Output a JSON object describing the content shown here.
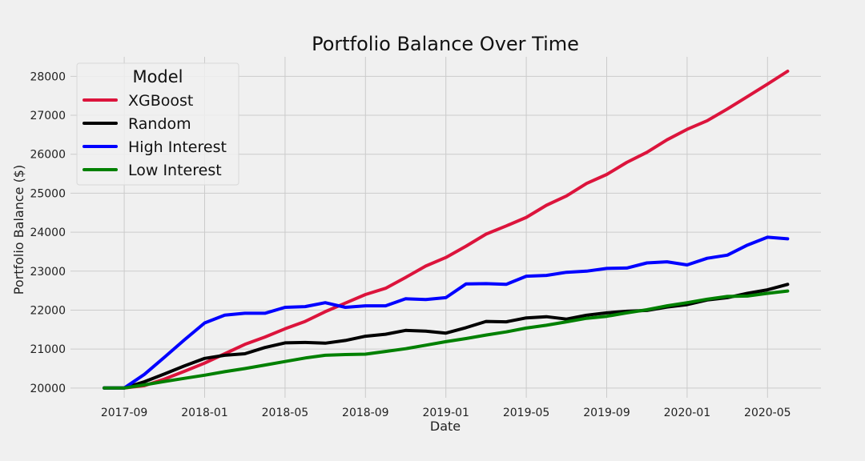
{
  "chart_data": {
    "type": "line",
    "title": "Portfolio Balance Over Time",
    "xlabel": "Date",
    "ylabel": "Portfolio Balance ($)",
    "x": [
      "2017-08",
      "2017-09",
      "2017-10",
      "2017-11",
      "2017-12",
      "2018-01",
      "2018-02",
      "2018-03",
      "2018-04",
      "2018-05",
      "2018-06",
      "2018-07",
      "2018-08",
      "2018-09",
      "2018-10",
      "2018-11",
      "2018-12",
      "2019-01",
      "2019-02",
      "2019-03",
      "2019-04",
      "2019-05",
      "2019-06",
      "2019-07",
      "2019-08",
      "2019-09",
      "2019-10",
      "2019-11",
      "2019-12",
      "2020-01",
      "2020-02",
      "2020-03",
      "2020-04",
      "2020-05",
      "2020-06"
    ],
    "x_ticks": [
      "2017-09",
      "2018-01",
      "2018-05",
      "2018-09",
      "2019-01",
      "2019-05",
      "2019-09",
      "2020-01",
      "2020-05"
    ],
    "y_ticks": [
      20000,
      21000,
      22000,
      23000,
      24000,
      25000,
      26000,
      27000,
      28000
    ],
    "ylim": [
      19750,
      28500
    ],
    "grid": true,
    "legend": {
      "title": "Model",
      "position": "top-left"
    },
    "series": [
      {
        "name": "XGBoost",
        "color": "#dc143c",
        "values": [
          20000,
          20000,
          20060,
          20230,
          20430,
          20640,
          20880,
          21120,
          21310,
          21520,
          21710,
          21960,
          22180,
          22400,
          22560,
          22840,
          23130,
          23350,
          23640,
          23950,
          24160,
          24380,
          24690,
          24930,
          25250,
          25480,
          25790,
          26050,
          26370,
          26640,
          26860,
          27160,
          27480,
          27800,
          28130
        ]
      },
      {
        "name": "Random",
        "color": "#000000",
        "values": [
          20000,
          20000,
          20160,
          20360,
          20570,
          20760,
          20840,
          20880,
          21040,
          21160,
          21170,
          21150,
          21220,
          21330,
          21380,
          21480,
          21460,
          21410,
          21550,
          21710,
          21700,
          21800,
          21830,
          21770,
          21870,
          21930,
          21970,
          21990,
          22080,
          22140,
          22260,
          22320,
          22430,
          22520,
          22660
        ]
      },
      {
        "name": "High Interest",
        "color": "#0000ff",
        "values": [
          20000,
          20000,
          20350,
          20790,
          21240,
          21670,
          21870,
          21920,
          21920,
          22070,
          22090,
          22190,
          22070,
          22110,
          22110,
          22290,
          22270,
          22320,
          22670,
          22680,
          22660,
          22870,
          22890,
          22970,
          23000,
          23070,
          23080,
          23210,
          23240,
          23160,
          23330,
          23410,
          23670,
          23870,
          23830
        ]
      },
      {
        "name": "Low Interest",
        "color": "#008000",
        "values": [
          20000,
          20000,
          20080,
          20170,
          20250,
          20330,
          20420,
          20500,
          20590,
          20680,
          20770,
          20840,
          20860,
          20870,
          20940,
          21010,
          21100,
          21190,
          21270,
          21360,
          21440,
          21540,
          21610,
          21700,
          21790,
          21840,
          21930,
          22010,
          22110,
          22190,
          22280,
          22350,
          22360,
          22430,
          22490
        ]
      }
    ]
  }
}
